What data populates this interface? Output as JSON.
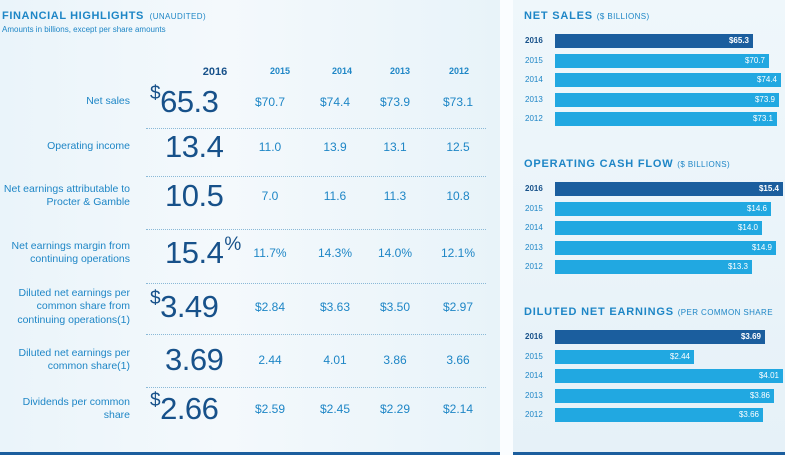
{
  "highlights": {
    "title": "FINANCIAL HIGHLIGHTS",
    "title_sub": "(UNAUDITED)",
    "subtitle": "Amounts in billions, except per share amounts",
    "years": [
      "2016",
      "2015",
      "2014",
      "2013",
      "2012"
    ],
    "rows": [
      {
        "label": "Net sales",
        "prefix": "$",
        "main": "65.3",
        "suffix": "",
        "values": [
          "$70.7",
          "$74.4",
          "$73.9",
          "$73.1"
        ]
      },
      {
        "label": "Operating income",
        "prefix": "",
        "main": "13.4",
        "suffix": "",
        "values": [
          "11.0",
          "13.9",
          "13.1",
          "12.5"
        ]
      },
      {
        "label": "Net earnings attributable to Procter & Gamble",
        "prefix": "",
        "main": "10.5",
        "suffix": "",
        "values": [
          "7.0",
          "11.6",
          "11.3",
          "10.8"
        ]
      },
      {
        "label": "Net earnings margin from continuing operations",
        "prefix": "",
        "main": "15.4",
        "suffix": "%",
        "values": [
          "11.7%",
          "14.3%",
          "14.0%",
          "12.1%"
        ]
      },
      {
        "label": "Diluted net earnings per common share from continuing operations(1)",
        "prefix": "$",
        "main": "3.49",
        "suffix": "",
        "values": [
          "$2.84",
          "$3.63",
          "$3.50",
          "$2.97"
        ]
      },
      {
        "label": "Diluted net earnings per common share(1)",
        "prefix": "",
        "main": "3.69",
        "suffix": "",
        "values": [
          "2.44",
          "4.01",
          "3.86",
          "3.66"
        ]
      },
      {
        "label": "Dividends per common share",
        "prefix": "$",
        "main": "2.66",
        "suffix": "",
        "values": [
          "$2.59",
          "$2.45",
          "$2.29",
          "$2.14"
        ]
      }
    ]
  },
  "chart_data": [
    {
      "type": "bar",
      "title": "NET SALES",
      "title_sub": "($ BILLIONS)",
      "categories": [
        "2016",
        "2015",
        "2014",
        "2013",
        "2012"
      ],
      "values": [
        65.3,
        70.7,
        74.4,
        73.9,
        73.1
      ],
      "labels": [
        "$65.3",
        "$70.7",
        "$74.4",
        "$73.9",
        "$73.1"
      ],
      "xlim": [
        0,
        75.2
      ]
    },
    {
      "type": "bar",
      "title": "OPERATING CASH FLOW",
      "title_sub": "($ BILLIONS)",
      "categories": [
        "2016",
        "2015",
        "2014",
        "2013",
        "2012"
      ],
      "values": [
        15.4,
        14.6,
        14.0,
        14.9,
        13.3
      ],
      "labels": [
        "$15.4",
        "$14.6",
        "$14.0",
        "$14.9",
        "$13.3"
      ],
      "xlim": [
        0,
        15.4
      ]
    },
    {
      "type": "bar",
      "title": "DILUTED NET EARNINGS",
      "title_sub": "(PER COMMON SHARE",
      "categories": [
        "2016",
        "2015",
        "2014",
        "2013",
        "2012"
      ],
      "values": [
        3.69,
        2.44,
        4.01,
        3.86,
        3.66
      ],
      "labels": [
        "$3.69",
        "$2.44",
        "$4.01",
        "$3.86",
        "$3.66"
      ],
      "xlim": [
        0,
        4.01
      ]
    }
  ],
  "colors": {
    "accent": "#1e86c6",
    "dark": "#17518a",
    "bar": "#21a8e1",
    "bar_highlight": "#1b5e9e"
  }
}
